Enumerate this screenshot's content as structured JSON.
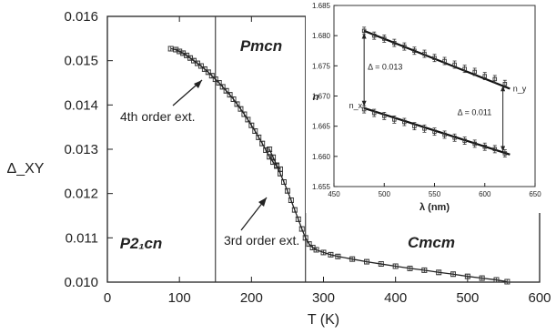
{
  "chart_data": [
    {
      "type": "scatter",
      "title": "",
      "xlabel": "T (K)",
      "ylabel": "Δ_XY",
      "xlim": [
        0,
        600
      ],
      "ylim": [
        0.01,
        0.016
      ],
      "xticks": [
        0,
        100,
        200,
        300,
        400,
        500,
        600
      ],
      "yticks": [
        "0.010",
        "0.011",
        "0.012",
        "0.013",
        "0.014",
        "0.015",
        "0.016"
      ],
      "grid": false,
      "phase_boundaries": [
        150,
        275
      ],
      "phase_labels": [
        "P2₁cn",
        "Pmcn",
        "Cmcm"
      ],
      "annotations": [
        "4th order ext.",
        "3rd order ext."
      ],
      "series": [
        {
          "x": [
            88,
            95,
            100,
            105,
            110,
            115,
            120,
            125,
            130,
            135,
            140,
            145,
            150,
            155,
            160,
            165,
            170,
            175,
            180,
            185,
            190,
            195,
            200,
            205,
            210,
            215,
            220,
            225,
            230,
            235,
            240
          ],
          "y": [
            0.01527,
            0.01525,
            0.01521,
            0.01517,
            0.01512,
            0.01506,
            0.015,
            0.01494,
            0.01488,
            0.01481,
            0.01474,
            0.01466,
            0.01458,
            0.0145,
            0.01441,
            0.01432,
            0.01423,
            0.01413,
            0.01402,
            0.01391,
            0.01379,
            0.01367,
            0.01354,
            0.01341,
            0.01327,
            0.01313,
            0.01298,
            0.01283,
            0.01271,
            0.01262,
            0.01255
          ],
          "yerr": 5e-05
        },
        {
          "x": [
            225,
            230,
            235,
            240,
            245,
            250,
            255,
            260,
            265,
            270,
            275,
            280,
            285,
            290,
            300,
            310,
            320,
            340,
            360,
            380,
            400,
            420,
            440,
            460,
            480,
            500,
            520,
            540,
            555
          ],
          "y": [
            0.013,
            0.01282,
            0.01264,
            0.01245,
            0.01226,
            0.01206,
            0.01185,
            0.01163,
            0.01142,
            0.0112,
            0.011,
            0.01086,
            0.01078,
            0.01073,
            0.01067,
            0.01062,
            0.01058,
            0.01052,
            0.01046,
            0.01041,
            0.01036,
            0.01031,
            0.01027,
            0.01022,
            0.01018,
            0.01013,
            0.01009,
            0.01005,
            0.01001
          ],
          "yerr": 5e-05
        }
      ]
    },
    {
      "type": "scatter",
      "title": "",
      "xlabel": "λ (nm)",
      "ylabel": "n",
      "xlim": [
        450,
        650
      ],
      "ylim": [
        1.655,
        1.685
      ],
      "xticks": [
        "450",
        "500",
        "550",
        "600",
        "650"
      ],
      "yticks": [
        "1.655",
        "1.660",
        "1.665",
        "1.670",
        "1.675",
        "1.680",
        "1.685"
      ],
      "grid": false,
      "series": [
        {
          "name": "n_y",
          "x": [
            480,
            490,
            500,
            510,
            520,
            530,
            540,
            550,
            560,
            570,
            580,
            590,
            600,
            610,
            620
          ],
          "y": [
            1.6808,
            1.68,
            1.6795,
            1.6788,
            1.6782,
            1.6775,
            1.677,
            1.6763,
            1.6758,
            1.6752,
            1.6745,
            1.674,
            1.6733,
            1.6728,
            1.672
          ],
          "fit": [
            [
              480,
              1.6808
            ],
            [
              625,
              1.6712
            ]
          ]
        },
        {
          "name": "n_x",
          "x": [
            480,
            490,
            500,
            510,
            520,
            530,
            540,
            550,
            560,
            570,
            580,
            590,
            600,
            610,
            620
          ],
          "y": [
            1.6678,
            1.6672,
            1.6667,
            1.6661,
            1.6657,
            1.665,
            1.6646,
            1.6641,
            1.6636,
            1.6631,
            1.6626,
            1.6621,
            1.6616,
            1.6612,
            1.6605
          ],
          "fit": [
            [
              480,
              1.668
            ],
            [
              625,
              1.6603
            ]
          ]
        }
      ],
      "annotations": [
        "Δ = 0.013",
        "Δ = 0.011"
      ]
    }
  ]
}
